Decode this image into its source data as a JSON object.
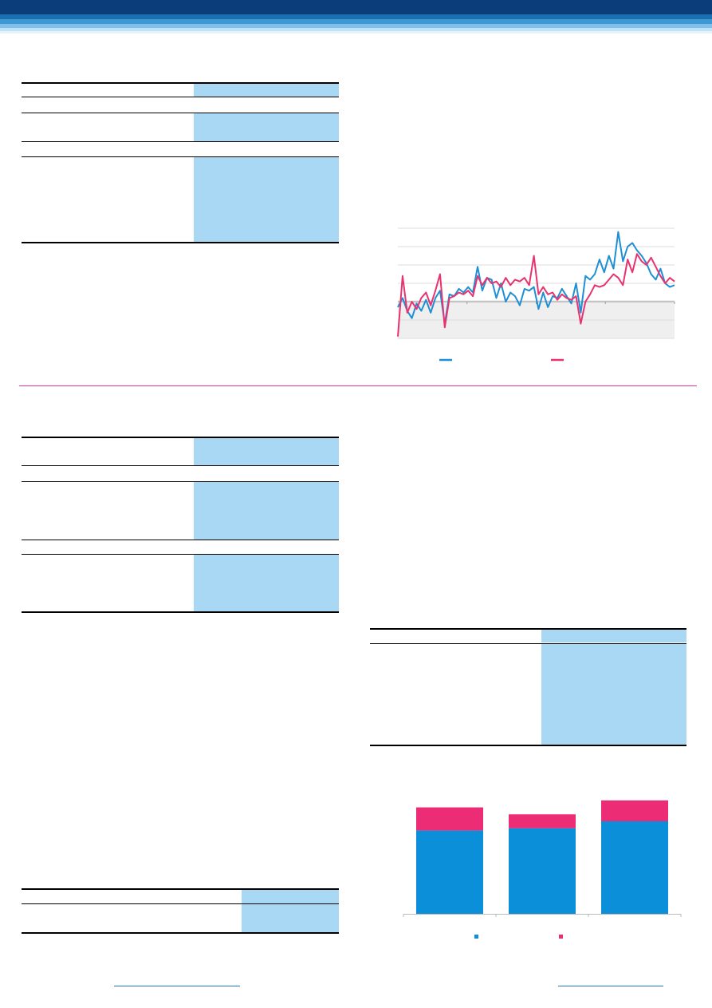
{
  "colors": {
    "header_dark": "#0a3d7a",
    "header_mid": "#1a6fb0",
    "header_light": "#a9d6f5",
    "table_fill": "#a9d8f4",
    "series_blue": "#1e8fd5",
    "series_pink": "#e8336f",
    "bar_blue": "#0a8fd8",
    "bar_pink": "#ec2c74",
    "divider_pink": "#e0369a",
    "link_blue": "#1f78c8"
  },
  "chart_data": [
    {
      "type": "line",
      "title": "",
      "xlabel": "",
      "ylabel": "",
      "ylim": [
        -2,
        4
      ],
      "x": [
        0,
        1,
        2,
        3,
        4,
        5,
        6,
        7,
        8,
        9,
        10,
        11,
        12,
        13,
        14,
        15,
        16,
        17,
        18,
        19,
        20,
        21,
        22,
        23,
        24,
        25,
        26,
        27,
        28,
        29,
        30,
        31,
        32,
        33,
        34,
        35,
        36,
        37,
        38,
        39,
        40,
        41,
        42,
        43,
        44,
        45,
        46,
        47,
        48,
        49,
        50,
        51,
        52,
        53,
        54,
        55,
        56,
        57,
        58,
        59
      ],
      "series": [
        {
          "values": [
            -0.3,
            0.2,
            -0.5,
            -0.9,
            -0.1,
            -0.5,
            0.1,
            -0.6,
            0.2,
            0.6,
            -1.2,
            0.4,
            0.3,
            0.7,
            0.5,
            0.8,
            0.5,
            1.9,
            0.6,
            1.3,
            1.2,
            0.2,
            1.0,
            0.0,
            0.5,
            0.3,
            -0.2,
            0.7,
            0.6,
            0.8,
            -0.4,
            0.5,
            -0.3,
            0.3,
            0.2,
            0.7,
            0.3,
            -0.1,
            1.0,
            -0.6,
            1.4,
            1.2,
            1.5,
            2.3,
            1.6,
            2.5,
            1.8,
            3.8,
            2.2,
            3.0,
            3.2,
            2.8,
            2.5,
            2.1,
            1.5,
            1.2,
            1.8,
            1.0,
            0.8,
            0.9
          ]
        },
        {
          "values": [
            -1.9,
            1.4,
            -0.6,
            0.0,
            -0.4,
            0.2,
            0.5,
            -0.2,
            0.6,
            1.5,
            -1.4,
            0.2,
            0.3,
            0.5,
            0.4,
            0.6,
            0.3,
            1.4,
            0.9,
            1.3,
            1.0,
            1.1,
            0.8,
            1.3,
            0.9,
            1.2,
            1.1,
            1.3,
            0.9,
            2.5,
            0.4,
            0.8,
            0.4,
            0.5,
            0.1,
            0.4,
            0.2,
            0.1,
            0.3,
            -1.2,
            0.0,
            0.4,
            0.9,
            0.8,
            0.9,
            1.2,
            1.5,
            1.3,
            0.9,
            2.3,
            1.6,
            2.6,
            2.2,
            2.0,
            2.4,
            1.9,
            1.4,
            1.0,
            1.3,
            1.1
          ]
        }
      ]
    },
    {
      "type": "bar",
      "stacked": true,
      "title": "",
      "categories": [
        "",
        "",
        ""
      ],
      "series": [
        {
          "values": [
            3.6,
            3.7,
            4.0
          ]
        },
        {
          "values": [
            1.0,
            0.6,
            0.9
          ]
        }
      ],
      "ylim": [
        0,
        5
      ]
    }
  ]
}
